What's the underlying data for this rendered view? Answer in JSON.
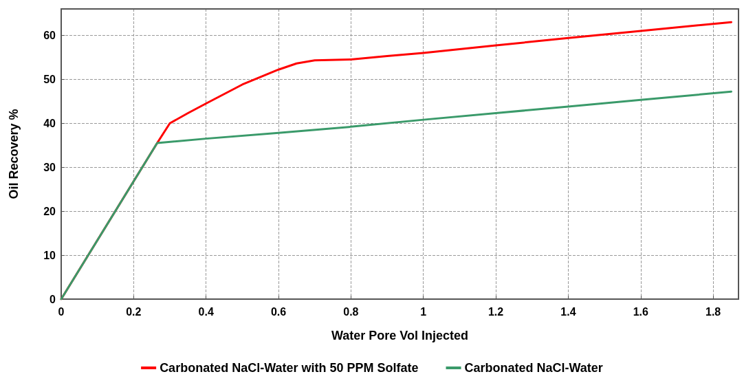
{
  "chart_data": {
    "type": "line",
    "xlabel": "Water Pore Vol Injected",
    "ylabel": "Oil Recovery %",
    "xlim": [
      0,
      1.87
    ],
    "xticks": [
      0,
      0.2,
      0.4,
      0.6,
      0.8,
      1,
      1.2,
      1.4,
      1.6,
      1.8
    ],
    "ylim": [
      0,
      66
    ],
    "yticks": [
      0,
      10,
      20,
      30,
      40,
      50,
      60
    ],
    "grid": true,
    "legend": "bottom",
    "marker": "none",
    "line_style": "solid",
    "series": [
      {
        "name": "Carbonated NaCl-Water with 50 PPM Solfate",
        "color": "#ff0000",
        "x": [
          0,
          0.265,
          0.3,
          0.35,
          0.4,
          0.5,
          0.6,
          0.65,
          0.7,
          0.8,
          0.9,
          1.0,
          1.2,
          1.4,
          1.6,
          1.85
        ],
        "values": [
          0,
          35.5,
          40,
          42.3,
          44.5,
          48.8,
          52.2,
          53.6,
          54.3,
          54.5,
          55.3,
          56,
          57.7,
          59.4,
          61,
          63
        ]
      },
      {
        "name": "Carbonated NaCl-Water",
        "color": "#3a9a6a",
        "x": [
          0,
          0.265,
          0.4,
          0.6,
          0.8,
          1.0,
          1.2,
          1.4,
          1.6,
          1.85
        ],
        "values": [
          0,
          35.5,
          36.5,
          37.8,
          39.2,
          40.8,
          42.3,
          43.8,
          45.3,
          47.2
        ]
      }
    ]
  }
}
